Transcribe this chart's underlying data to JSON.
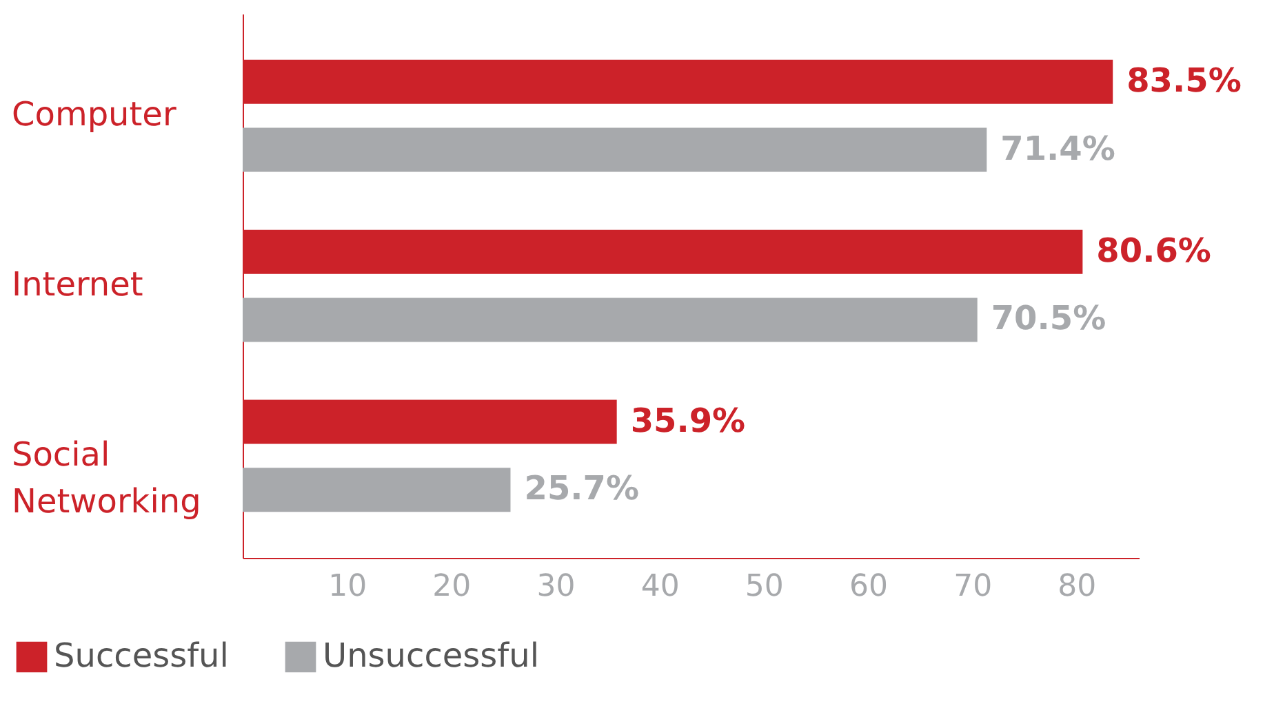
{
  "chart_data": {
    "type": "bar",
    "orientation": "horizontal",
    "categories": [
      "Computer",
      "Internet",
      "Social Networking"
    ],
    "series": [
      {
        "name": "Successful",
        "color": "#cc2229",
        "values": [
          83.5,
          80.6,
          35.9
        ],
        "value_labels": [
          "83.5%",
          "80.6%",
          "35.9%"
        ]
      },
      {
        "name": "Unsuccessful",
        "color": "#a7a9ac",
        "values": [
          71.4,
          70.5,
          25.7
        ],
        "value_labels": [
          "71.4%",
          "70.5%",
          "25.7%"
        ]
      }
    ],
    "xlim": [
      0,
      86
    ],
    "xticks": [
      10,
      20,
      30,
      40,
      50,
      60,
      70,
      80
    ],
    "grid": false,
    "legend": "bottom left"
  }
}
